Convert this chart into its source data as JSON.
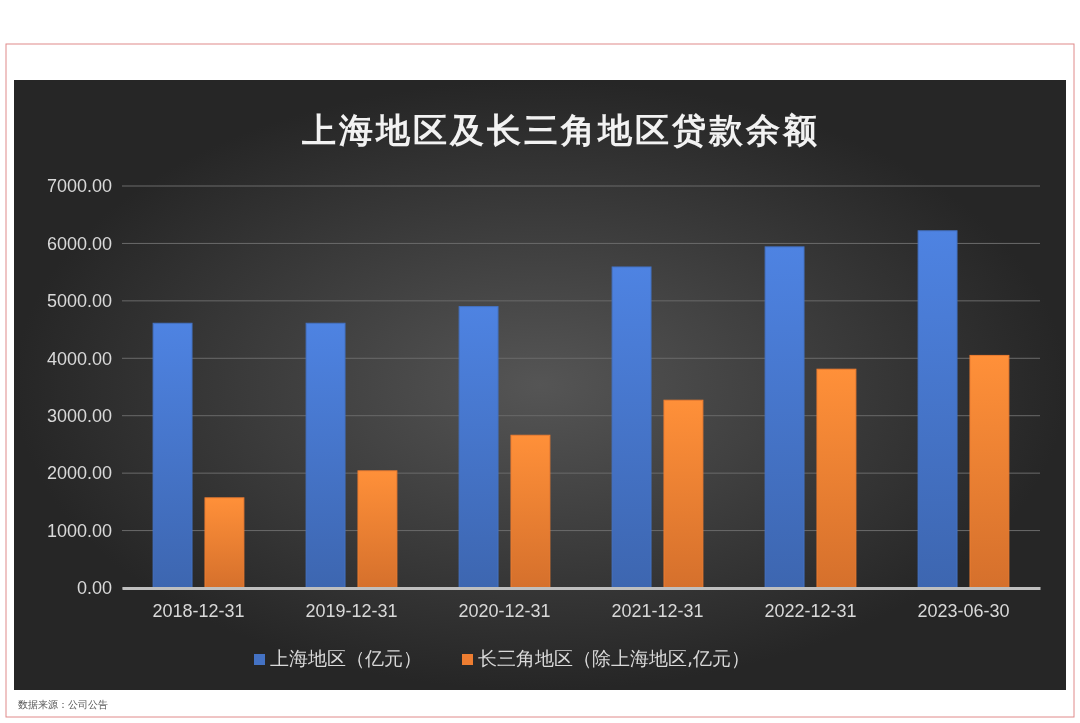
{
  "chart_data": {
    "type": "bar",
    "title": "上海地区及长三角地区贷款余额",
    "categories": [
      "2018-12-31",
      "2019-12-31",
      "2020-12-31",
      "2021-12-31",
      "2022-12-31",
      "2023-06-30"
    ],
    "series": [
      {
        "name": "上海地区（亿元）",
        "color": "#4472c4",
        "values": [
          4610,
          4610,
          4900,
          5590,
          5940,
          6220
        ]
      },
      {
        "name": "长三角地区（除上海地区,亿元）",
        "color": "#ed7d31",
        "values": [
          1570,
          2040,
          2660,
          3270,
          3810,
          4050
        ]
      }
    ],
    "ylim": [
      0,
      7000
    ],
    "yticks": [
      {
        "value": 0,
        "label": "0.00"
      },
      {
        "value": 1000,
        "label": "1000.00"
      },
      {
        "value": 2000,
        "label": "2000.00"
      },
      {
        "value": 3000,
        "label": "3000.00"
      },
      {
        "value": 4000,
        "label": "4000.00"
      },
      {
        "value": 5000,
        "label": "5000.00"
      },
      {
        "value": 6000,
        "label": "6000.00"
      },
      {
        "value": 7000,
        "label": "7000.00"
      }
    ],
    "grid": "y",
    "legend": "bottom",
    "annotations": [
      "数据来源：公司公告"
    ]
  }
}
